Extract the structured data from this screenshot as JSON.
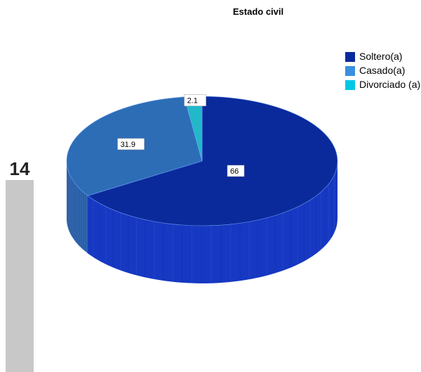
{
  "page_number": "14",
  "chart_data": {
    "type": "pie",
    "title": "Estado civil",
    "categories": [
      "Soltero(a)",
      "Casado(a)",
      "Divorciado (a)"
    ],
    "values": [
      66,
      31.9,
      2.1
    ],
    "data_labels": [
      "66",
      "31.9",
      "2.1"
    ],
    "colors": [
      "#0a2a9c",
      "#2d6db6",
      "#22b7c9"
    ],
    "side_colors": [
      "#1638c2",
      "#2a62ad",
      "#1fa5b6"
    ],
    "legend_colors": [
      "#0a2a9c",
      "#3a8fe0",
      "#00c8e6"
    ],
    "legend_placement": "top-right",
    "style": "3d"
  }
}
